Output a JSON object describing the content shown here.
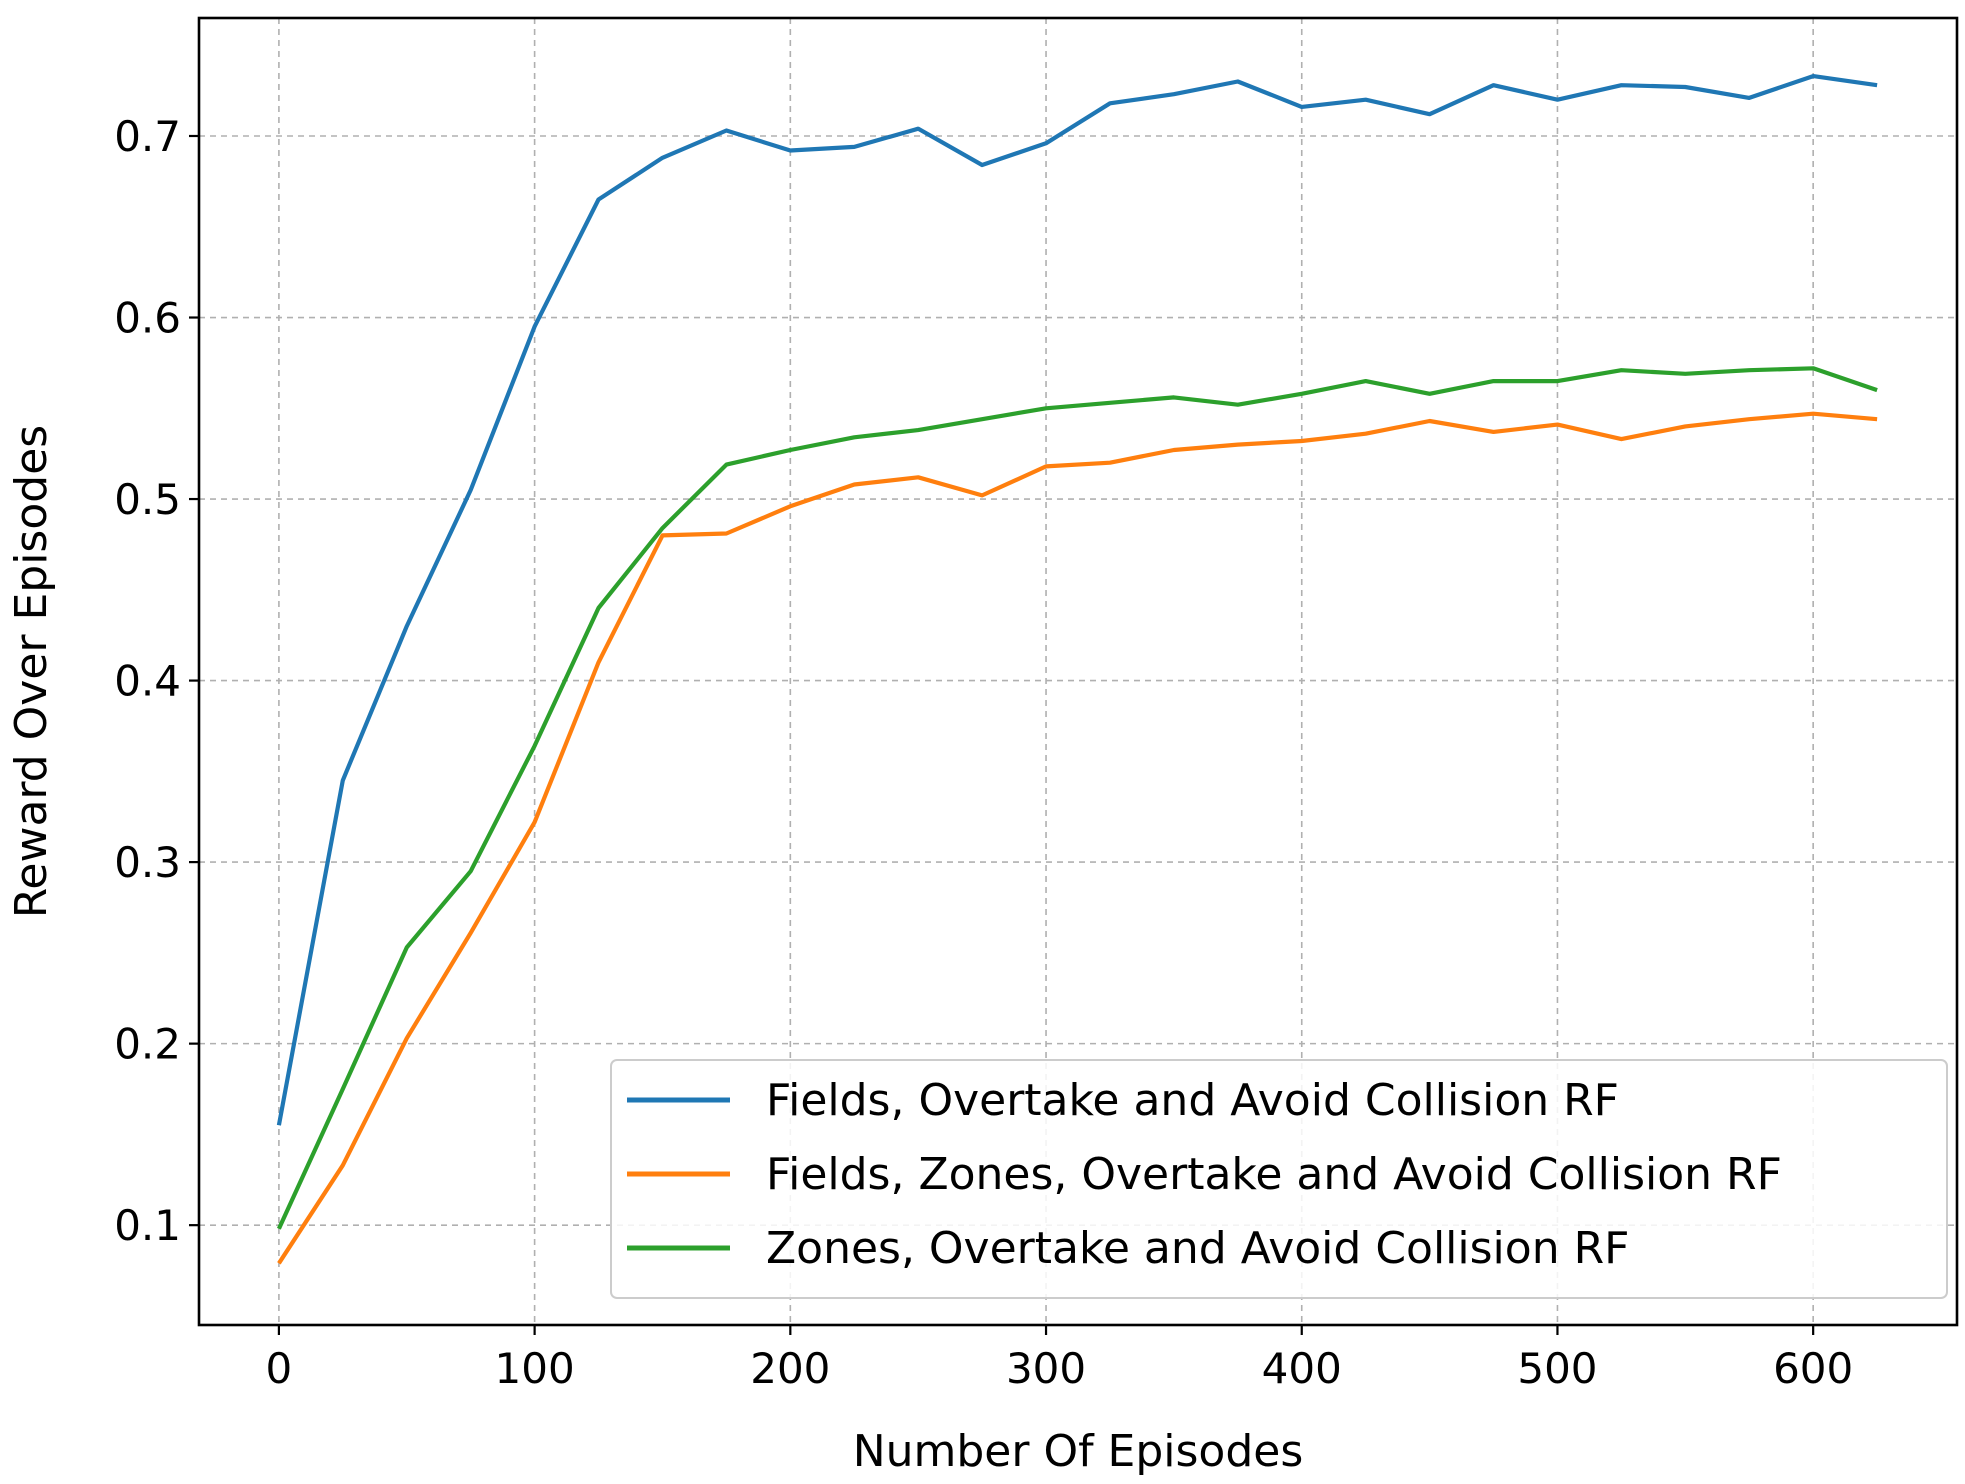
{
  "chart_data": {
    "type": "line",
    "title": "",
    "xlabel": "Number Of Episodes",
    "ylabel": "Reward Over Episodes",
    "xlim": [
      -31.25,
      656.25
    ],
    "ylim": [
      0.045,
      0.765
    ],
    "xticks": [
      0,
      100,
      200,
      300,
      400,
      500,
      600
    ],
    "xtick_labels": [
      "0",
      "100",
      "200",
      "300",
      "400",
      "500",
      "600"
    ],
    "yticks": [
      0.1,
      0.2,
      0.3,
      0.4,
      0.5,
      0.6,
      0.7
    ],
    "ytick_labels": [
      "0.1",
      "0.2",
      "0.3",
      "0.4",
      "0.5",
      "0.6",
      "0.7"
    ],
    "grid": true,
    "legend_position": "lower-right",
    "x": [
      0,
      25,
      50,
      75,
      100,
      125,
      150,
      175,
      200,
      225,
      250,
      275,
      300,
      325,
      350,
      375,
      400,
      425,
      450,
      475,
      500,
      525,
      550,
      575,
      600,
      625
    ],
    "series": [
      {
        "name": "Fields, Overtake and Avoid Collision RF",
        "color": "#1f77b4",
        "values": [
          0.155,
          0.345,
          0.43,
          0.505,
          0.595,
          0.665,
          0.688,
          0.703,
          0.692,
          0.694,
          0.704,
          0.684,
          0.696,
          0.718,
          0.723,
          0.73,
          0.716,
          0.72,
          0.712,
          0.728,
          0.72,
          0.728,
          0.727,
          0.721,
          0.733,
          0.728
        ]
      },
      {
        "name": "Fields, Zones, Overtake and Avoid Collision RF",
        "color": "#ff7f0e",
        "values": [
          0.079,
          0.133,
          0.203,
          0.261,
          0.322,
          0.41,
          0.48,
          0.481,
          0.496,
          0.508,
          0.512,
          0.502,
          0.518,
          0.52,
          0.527,
          0.53,
          0.532,
          0.536,
          0.543,
          0.537,
          0.541,
          0.533,
          0.54,
          0.544,
          0.547,
          0.544
        ]
      },
      {
        "name": "Zones, Overtake and Avoid Collision RF",
        "color": "#2ca02c",
        "values": [
          0.098,
          0.175,
          0.253,
          0.295,
          0.364,
          0.44,
          0.484,
          0.519,
          0.527,
          0.534,
          0.538,
          0.544,
          0.55,
          0.553,
          0.556,
          0.552,
          0.558,
          0.565,
          0.558,
          0.565,
          0.565,
          0.571,
          0.569,
          0.571,
          0.572,
          0.56
        ]
      }
    ]
  }
}
